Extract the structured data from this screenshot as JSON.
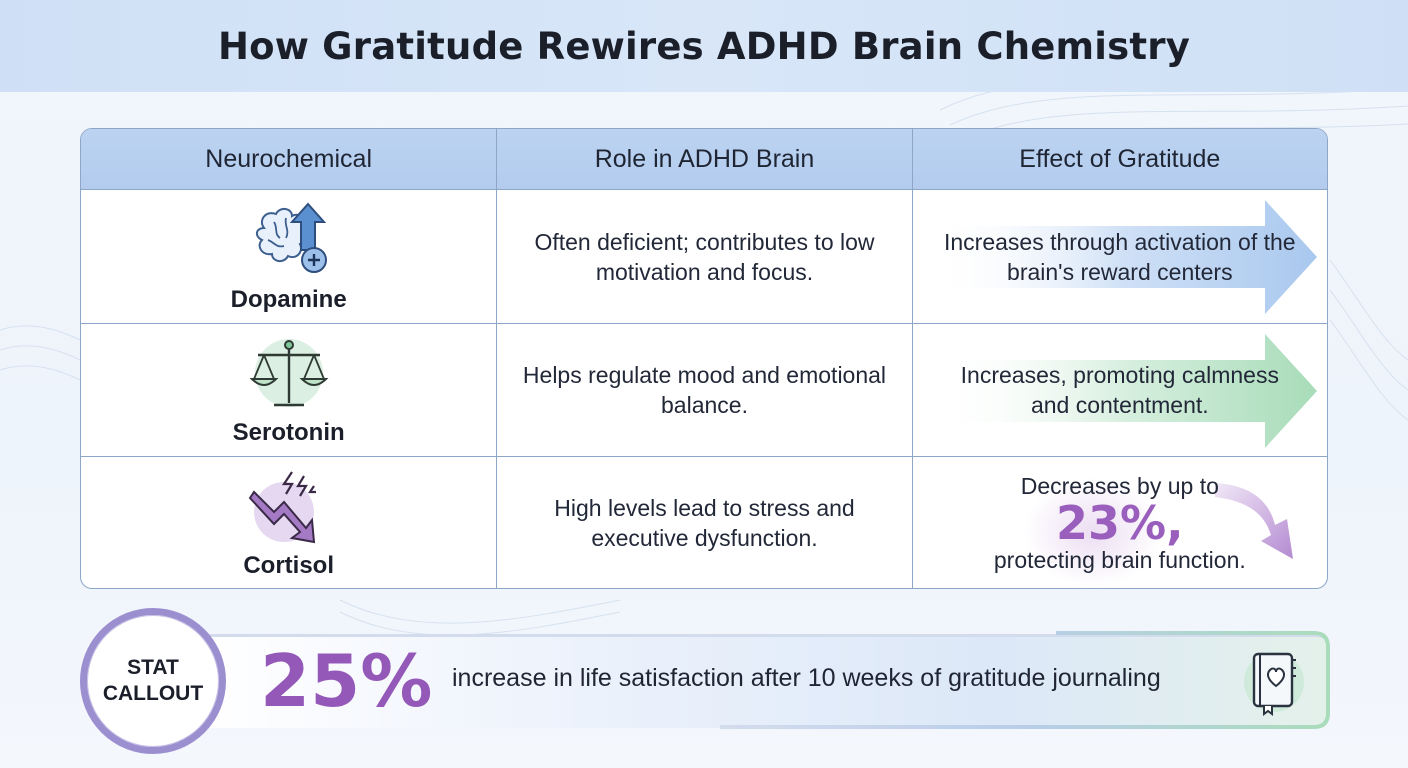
{
  "title": "How Gratitude Rewires ADHD Brain Chemistry",
  "colors": {
    "header_bg": "#cfe0f6",
    "table_header": "#bcd3f1",
    "dopamine_accent": "#4a7fbf",
    "serotonin_accent": "#7fc79a",
    "cortisol_accent": "#9a5fbd",
    "stat_number": "#9459b8"
  },
  "table": {
    "headers": [
      "Neurochemical",
      "Role in ADHD Brain",
      "Effect of Gratitude"
    ],
    "rows": [
      {
        "name": "Dopamine",
        "icon": "brain-with-up-arrow-icon",
        "role": "Often deficient; contributes to low motivation and focus.",
        "effect": "Increases through activation of the brain's reward centers"
      },
      {
        "name": "Serotonin",
        "icon": "balance-scale-icon",
        "role": "Helps regulate mood and emotional balance.",
        "effect": "Increases, promoting calmness and contentment."
      },
      {
        "name": "Cortisol",
        "icon": "lightning-down-arrow-icon",
        "role": "High levels lead to stress and executive dysfunction.",
        "effect_pre": "Decreases by up to",
        "effect_value": "23%,",
        "effect_post": "protecting brain function."
      }
    ]
  },
  "callout": {
    "badge_line1": "STAT",
    "badge_line2": "CALLOUT",
    "value": "25%",
    "text": "increase in life satisfaction after 10 weeks of gratitude journaling",
    "icon": "journal-heart-icon"
  }
}
